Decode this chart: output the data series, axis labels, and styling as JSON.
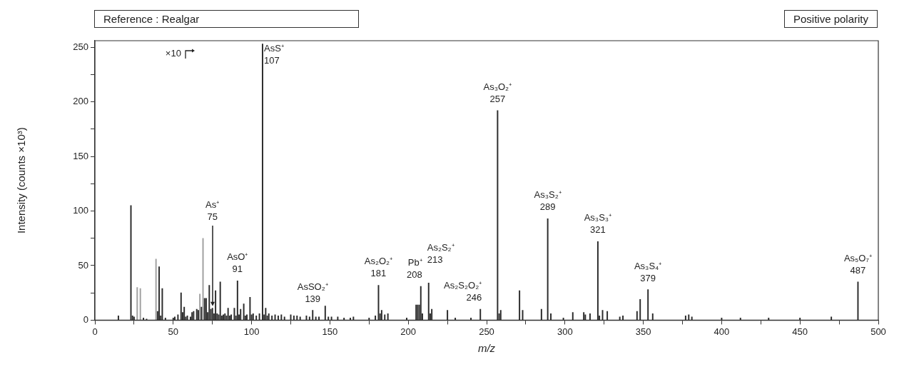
{
  "chart_data": {
    "type": "bar",
    "title": "Reference : Realgar",
    "subtitle": "Positive polarity",
    "xlabel": "m/z",
    "ylabel": "Intensity (counts ×10³)",
    "x": [
      15,
      23,
      24,
      25,
      27,
      29,
      31,
      33,
      39,
      40,
      41,
      42,
      43,
      45,
      50,
      51,
      53,
      55,
      56,
      57,
      58,
      59,
      61,
      62,
      63,
      65,
      66,
      67,
      68,
      69,
      70,
      71,
      72,
      73,
      74,
      75,
      76,
      77,
      78,
      79,
      80,
      81,
      82,
      83,
      84,
      85,
      86,
      87,
      89,
      90,
      91,
      92,
      93,
      95,
      96,
      97,
      99,
      100,
      101,
      103,
      105,
      107,
      108,
      109,
      110,
      111,
      113,
      115,
      117,
      119,
      121,
      125,
      127,
      129,
      131,
      135,
      137,
      139,
      141,
      143,
      147,
      149,
      151,
      155,
      159,
      163,
      165,
      175,
      179,
      181,
      182,
      183,
      185,
      187,
      199,
      205,
      206,
      207,
      208,
      209,
      213,
      214,
      215,
      225,
      230,
      240,
      246,
      257,
      258,
      259,
      271,
      273,
      285,
      289,
      291,
      299,
      305,
      312,
      313,
      316,
      321,
      322,
      324,
      327,
      335,
      337,
      346,
      348,
      353,
      356,
      377,
      379,
      381,
      400,
      412,
      430,
      450,
      470,
      487
    ],
    "values": [
      4,
      105,
      4,
      3,
      30,
      29,
      2,
      1,
      56,
      8,
      49,
      4,
      29,
      2,
      2,
      3,
      5,
      25,
      7,
      12,
      3,
      4,
      3,
      7,
      8,
      10,
      9,
      24,
      12,
      75,
      20,
      20,
      7,
      32,
      10,
      11,
      6,
      27,
      6,
      5,
      35,
      4,
      5,
      6,
      4,
      11,
      4,
      5,
      11,
      4,
      36,
      5,
      10,
      15,
      4,
      5,
      21,
      5,
      6,
      4,
      6,
      253,
      5,
      11,
      4,
      6,
      4,
      5,
      4,
      5,
      3,
      5,
      4,
      4,
      3,
      4,
      3,
      9,
      3,
      3,
      13,
      3,
      3,
      3,
      2,
      2,
      3,
      2,
      4,
      32,
      6,
      9,
      5,
      6,
      2,
      14,
      14,
      14,
      31,
      6,
      34,
      6,
      10,
      9,
      2,
      2,
      10,
      192,
      6,
      9,
      27,
      9,
      10,
      93,
      6,
      2,
      7,
      7,
      5,
      6,
      72,
      4,
      9,
      8,
      3,
      4,
      8,
      19,
      28,
      6,
      4,
      5,
      3,
      2,
      2,
      2,
      2,
      3,
      35
    ],
    "colors": [
      "#2b2b2b",
      "#2b2b2b",
      "#2b2b2b",
      "#2b2b2b",
      "#a0a0a0",
      "#a0a0a0",
      "#2b2b2b",
      "#2b2b2b",
      "#a0a0a0",
      "#2b2b2b",
      "#2b2b2b",
      "#2b2b2b",
      "#2b2b2b",
      "#2b2b2b",
      "#2b2b2b",
      "#2b2b2b",
      "#2b2b2b",
      "#2b2b2b",
      "#2b2b2b",
      "#2b2b2b",
      "#2b2b2b",
      "#2b2b2b",
      "#2b2b2b",
      "#2b2b2b",
      "#2b2b2b",
      "#2b2b2b",
      "#2b2b2b",
      "#a0a0a0",
      "#2b2b2b",
      "#a0a0a0",
      "#2b2b2b",
      "#2b2b2b",
      "#2b2b2b",
      "#2b2b2b",
      "#2b2b2b",
      "#2b2b2b",
      "#2b2b2b",
      "#2b2b2b",
      "#2b2b2b",
      "#2b2b2b",
      "#2b2b2b",
      "#2b2b2b",
      "#2b2b2b",
      "#2b2b2b",
      "#2b2b2b",
      "#2b2b2b",
      "#2b2b2b",
      "#2b2b2b",
      "#2b2b2b",
      "#2b2b2b",
      "#2b2b2b",
      "#2b2b2b",
      "#2b2b2b",
      "#2b2b2b",
      "#2b2b2b",
      "#2b2b2b",
      "#2b2b2b",
      "#2b2b2b",
      "#2b2b2b",
      "#2b2b2b",
      "#2b2b2b",
      "#2b2b2b",
      "#2b2b2b",
      "#2b2b2b",
      "#2b2b2b",
      "#2b2b2b",
      "#2b2b2b",
      "#2b2b2b",
      "#2b2b2b",
      "#2b2b2b",
      "#2b2b2b",
      "#2b2b2b",
      "#2b2b2b",
      "#2b2b2b",
      "#2b2b2b",
      "#2b2b2b",
      "#2b2b2b",
      "#2b2b2b",
      "#2b2b2b",
      "#2b2b2b",
      "#2b2b2b",
      "#2b2b2b",
      "#2b2b2b",
      "#2b2b2b",
      "#2b2b2b",
      "#2b2b2b",
      "#2b2b2b",
      "#2b2b2b",
      "#2b2b2b",
      "#2b2b2b",
      "#2b2b2b",
      "#2b2b2b",
      "#2b2b2b",
      "#2b2b2b",
      "#2b2b2b",
      "#2b2b2b",
      "#2b2b2b",
      "#2b2b2b",
      "#2b2b2b",
      "#2b2b2b",
      "#2b2b2b",
      "#2b2b2b",
      "#2b2b2b",
      "#2b2b2b",
      "#2b2b2b",
      "#2b2b2b",
      "#2b2b2b",
      "#2b2b2b",
      "#2b2b2b",
      "#2b2b2b",
      "#2b2b2b",
      "#2b2b2b",
      "#2b2b2b",
      "#2b2b2b",
      "#2b2b2b",
      "#2b2b2b",
      "#2b2b2b",
      "#2b2b2b",
      "#2b2b2b",
      "#2b2b2b",
      "#2b2b2b",
      "#2b2b2b",
      "#2b2b2b",
      "#2b2b2b",
      "#2b2b2b",
      "#2b2b2b",
      "#2b2b2b",
      "#2b2b2b",
      "#2b2b2b",
      "#2b2b2b",
      "#2b2b2b",
      "#2b2b2b",
      "#2b2b2b",
      "#2b2b2b",
      "#2b2b2b",
      "#2b2b2b",
      "#2b2b2b",
      "#2b2b2b",
      "#2b2b2b"
    ],
    "xlim": [
      0,
      500
    ],
    "xticks": [
      0,
      {
        "value": 25,
        "label": null
      },
      50,
      {
        "value": 75,
        "label": null
      },
      100,
      {
        "value": 125,
        "label": null
      },
      150,
      {
        "value": 175,
        "label": null
      },
      200,
      {
        "value": 225,
        "label": null
      },
      250,
      {
        "value": 275,
        "label": null
      },
      300,
      {
        "value": 325,
        "label": null
      },
      350,
      {
        "value": 375,
        "label": null
      },
      400,
      {
        "value": 425,
        "label": null
      },
      450,
      {
        "value": 475,
        "label": null
      },
      500
    ],
    "ylim": [
      0,
      256
    ],
    "yticks": [
      0,
      {
        "value": 25,
        "label": null
      },
      50,
      {
        "value": 75,
        "label": null
      },
      100,
      {
        "value": 125,
        "label": null
      },
      150,
      {
        "value": 175,
        "label": null
      },
      200,
      {
        "value": 225,
        "label": null
      },
      250
    ],
    "grid": false,
    "legend": false,
    "annotations": [
      "×10",
      {
        "text": "As⁺\n75",
        "x": 75,
        "y": 11
      },
      {
        "text": "AsO⁺\n91",
        "x": 91,
        "y": 36
      },
      {
        "text": "AsS⁺\n107",
        "x": 107,
        "y": 253
      },
      {
        "text": "AsSO₂⁺\n139",
        "x": 139,
        "y": 9
      },
      {
        "text": "As₂O₂⁺\n181",
        "x": 181,
        "y": 32
      },
      {
        "text": "Pb⁺\n208",
        "x": 208,
        "y": 31
      },
      {
        "text": "As₂S₂⁺\n213",
        "x": 213,
        "y": 34
      },
      {
        "text": "As₂S₂O₂⁺\n246",
        "x": 246,
        "y": 10
      },
      {
        "text": "As₃O₂⁺\n257",
        "x": 257,
        "y": 192
      },
      {
        "text": "As₃S₂⁺\n289",
        "x": 289,
        "y": 93
      },
      {
        "text": "As₃S₃⁺\n321",
        "x": 321,
        "y": 72
      },
      {
        "text": "As₃S₄⁺\n379",
        "x": 353,
        "y": 28
      },
      {
        "text": "As₅O₇⁺\n487",
        "x": 487,
        "y": 35
      }
    ]
  }
}
